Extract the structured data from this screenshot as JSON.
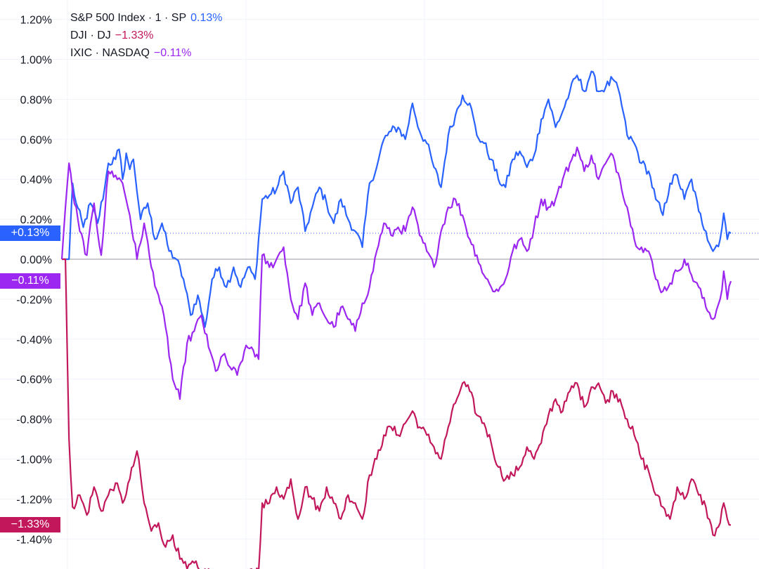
{
  "chart_data": {
    "type": "line",
    "ylabel": "",
    "xlabel": "",
    "ylim": [
      -1.6,
      1.25
    ],
    "y_ticks": [
      "1.20%",
      "1.00%",
      "0.80%",
      "0.60%",
      "0.40%",
      "0.20%",
      "0.00%",
      "-0.20%",
      "-0.40%",
      "-0.60%",
      "-0.80%",
      "-1.00%",
      "-1.20%",
      "-1.40%"
    ],
    "y_tick_values": [
      1.2,
      1.0,
      0.8,
      0.6,
      0.4,
      0.2,
      0.0,
      -0.2,
      -0.4,
      -0.6,
      -0.8,
      -1.0,
      -1.2,
      -1.4
    ],
    "grid": true,
    "legend_position": "top-left",
    "series": [
      {
        "name": "S&P 500 Index · 1 · SP",
        "legend_value": "0.13%",
        "badge": "+0.13%",
        "color": "#2962ff",
        "keypoints": [
          [
            0,
            0.0
          ],
          [
            2,
            0.0
          ],
          [
            3,
            0.38
          ],
          [
            4,
            0.28
          ],
          [
            6,
            0.16
          ],
          [
            8,
            0.28
          ],
          [
            10,
            0.18
          ],
          [
            12,
            0.36
          ],
          [
            13,
            0.48
          ],
          [
            15,
            0.5
          ],
          [
            16,
            0.55
          ],
          [
            17,
            0.4
          ],
          [
            18,
            0.53
          ],
          [
            19,
            0.45
          ],
          [
            20,
            0.5
          ],
          [
            22,
            0.2
          ],
          [
            24,
            0.28
          ],
          [
            26,
            0.1
          ],
          [
            28,
            0.18
          ],
          [
            30,
            0.04
          ],
          [
            32,
            0.0
          ],
          [
            34,
            -0.1
          ],
          [
            36,
            -0.28
          ],
          [
            38,
            -0.18
          ],
          [
            40,
            -0.34
          ],
          [
            42,
            -0.1
          ],
          [
            44,
            -0.04
          ],
          [
            46,
            -0.14
          ],
          [
            48,
            -0.04
          ],
          [
            50,
            -0.14
          ],
          [
            52,
            -0.04
          ],
          [
            54,
            -0.1
          ],
          [
            56,
            0.3
          ],
          [
            58,
            0.32
          ],
          [
            60,
            0.35
          ],
          [
            62,
            0.44
          ],
          [
            64,
            0.28
          ],
          [
            66,
            0.36
          ],
          [
            68,
            0.14
          ],
          [
            70,
            0.26
          ],
          [
            72,
            0.36
          ],
          [
            74,
            0.28
          ],
          [
            76,
            0.18
          ],
          [
            78,
            0.3
          ],
          [
            80,
            0.2
          ],
          [
            82,
            0.14
          ],
          [
            84,
            0.06
          ],
          [
            86,
            0.38
          ],
          [
            88,
            0.46
          ],
          [
            90,
            0.6
          ],
          [
            92,
            0.64
          ],
          [
            94,
            0.66
          ],
          [
            96,
            0.6
          ],
          [
            98,
            0.78
          ],
          [
            100,
            0.64
          ],
          [
            102,
            0.58
          ],
          [
            104,
            0.46
          ],
          [
            106,
            0.36
          ],
          [
            108,
            0.62
          ],
          [
            110,
            0.72
          ],
          [
            112,
            0.82
          ],
          [
            114,
            0.78
          ],
          [
            116,
            0.62
          ],
          [
            118,
            0.58
          ],
          [
            120,
            0.5
          ],
          [
            122,
            0.4
          ],
          [
            124,
            0.36
          ],
          [
            126,
            0.5
          ],
          [
            128,
            0.54
          ],
          [
            130,
            0.46
          ],
          [
            132,
            0.52
          ],
          [
            134,
            0.7
          ],
          [
            136,
            0.8
          ],
          [
            138,
            0.66
          ],
          [
            140,
            0.74
          ],
          [
            142,
            0.84
          ],
          [
            144,
            0.92
          ],
          [
            146,
            0.84
          ],
          [
            148,
            0.94
          ],
          [
            150,
            0.84
          ],
          [
            152,
            0.86
          ],
          [
            154,
            0.9
          ],
          [
            156,
            0.82
          ],
          [
            158,
            0.62
          ],
          [
            160,
            0.58
          ],
          [
            162,
            0.48
          ],
          [
            164,
            0.44
          ],
          [
            166,
            0.3
          ],
          [
            168,
            0.22
          ],
          [
            170,
            0.38
          ],
          [
            172,
            0.42
          ],
          [
            174,
            0.3
          ],
          [
            176,
            0.4
          ],
          [
            178,
            0.24
          ],
          [
            180,
            0.14
          ],
          [
            182,
            0.04
          ],
          [
            184,
            0.1
          ],
          [
            185,
            0.23
          ],
          [
            186,
            0.1
          ],
          [
            187,
            0.13
          ]
        ]
      },
      {
        "name": "DJI · DJ",
        "legend_value": "−1.33%",
        "badge": "−1.33%",
        "color": "#c2185b",
        "keypoints": [
          [
            0,
            0.0
          ],
          [
            1,
            0.0
          ],
          [
            2,
            -0.9
          ],
          [
            3,
            -1.24
          ],
          [
            5,
            -1.18
          ],
          [
            7,
            -1.28
          ],
          [
            9,
            -1.14
          ],
          [
            11,
            -1.26
          ],
          [
            13,
            -1.18
          ],
          [
            15,
            -1.12
          ],
          [
            17,
            -1.22
          ],
          [
            19,
            -1.1
          ],
          [
            21,
            -0.96
          ],
          [
            23,
            -1.22
          ],
          [
            25,
            -1.36
          ],
          [
            27,
            -1.32
          ],
          [
            29,
            -1.44
          ],
          [
            31,
            -1.38
          ],
          [
            33,
            -1.5
          ],
          [
            35,
            -1.55
          ],
          [
            37,
            -1.52
          ],
          [
            39,
            -1.58
          ],
          [
            41,
            -1.55
          ],
          [
            43,
            -1.62
          ],
          [
            45,
            -1.56
          ],
          [
            47,
            -1.6
          ],
          [
            49,
            -1.58
          ],
          [
            51,
            -1.62
          ],
          [
            53,
            -1.55
          ],
          [
            55,
            -1.56
          ],
          [
            56,
            -1.22
          ],
          [
            58,
            -1.22
          ],
          [
            60,
            -1.14
          ],
          [
            62,
            -1.2
          ],
          [
            64,
            -1.1
          ],
          [
            66,
            -1.3
          ],
          [
            68,
            -1.14
          ],
          [
            70,
            -1.2
          ],
          [
            72,
            -1.26
          ],
          [
            74,
            -1.14
          ],
          [
            76,
            -1.22
          ],
          [
            78,
            -1.3
          ],
          [
            80,
            -1.18
          ],
          [
            82,
            -1.22
          ],
          [
            84,
            -1.3
          ],
          [
            86,
            -1.08
          ],
          [
            88,
            -1.0
          ],
          [
            90,
            -0.88
          ],
          [
            92,
            -0.84
          ],
          [
            94,
            -0.88
          ],
          [
            96,
            -0.82
          ],
          [
            98,
            -0.76
          ],
          [
            100,
            -0.84
          ],
          [
            102,
            -0.88
          ],
          [
            104,
            -0.94
          ],
          [
            106,
            -1.0
          ],
          [
            108,
            -0.84
          ],
          [
            110,
            -0.72
          ],
          [
            112,
            -0.62
          ],
          [
            114,
            -0.66
          ],
          [
            116,
            -0.78
          ],
          [
            118,
            -0.82
          ],
          [
            120,
            -0.92
          ],
          [
            122,
            -1.04
          ],
          [
            124,
            -1.1
          ],
          [
            126,
            -1.08
          ],
          [
            128,
            -1.04
          ],
          [
            130,
            -0.94
          ],
          [
            132,
            -1.0
          ],
          [
            134,
            -0.92
          ],
          [
            136,
            -0.78
          ],
          [
            138,
            -0.7
          ],
          [
            140,
            -0.76
          ],
          [
            142,
            -0.66
          ],
          [
            144,
            -0.62
          ],
          [
            146,
            -0.74
          ],
          [
            148,
            -0.64
          ],
          [
            150,
            -0.62
          ],
          [
            152,
            -0.72
          ],
          [
            154,
            -0.66
          ],
          [
            156,
            -0.7
          ],
          [
            158,
            -0.8
          ],
          [
            160,
            -0.88
          ],
          [
            162,
            -1.0
          ],
          [
            164,
            -1.06
          ],
          [
            166,
            -1.18
          ],
          [
            168,
            -1.24
          ],
          [
            170,
            -1.3
          ],
          [
            172,
            -1.14
          ],
          [
            174,
            -1.2
          ],
          [
            176,
            -1.1
          ],
          [
            178,
            -1.18
          ],
          [
            180,
            -1.24
          ],
          [
            182,
            -1.38
          ],
          [
            184,
            -1.32
          ],
          [
            185,
            -1.22
          ],
          [
            186,
            -1.3
          ],
          [
            187,
            -1.33
          ]
        ]
      },
      {
        "name": "IXIC · NASDAQ",
        "legend_value": "−0.11%",
        "badge": "−0.11%",
        "color": "#9c27f0",
        "keypoints": [
          [
            0,
            0.0
          ],
          [
            1,
            0.26
          ],
          [
            2,
            0.48
          ],
          [
            3,
            0.34
          ],
          [
            5,
            0.14
          ],
          [
            7,
            0.02
          ],
          [
            9,
            0.28
          ],
          [
            11,
            0.02
          ],
          [
            13,
            0.44
          ],
          [
            15,
            0.42
          ],
          [
            17,
            0.38
          ],
          [
            19,
            0.22
          ],
          [
            21,
            0.0
          ],
          [
            23,
            0.18
          ],
          [
            25,
            -0.04
          ],
          [
            27,
            -0.18
          ],
          [
            29,
            -0.34
          ],
          [
            31,
            -0.6
          ],
          [
            33,
            -0.7
          ],
          [
            35,
            -0.42
          ],
          [
            37,
            -0.36
          ],
          [
            39,
            -0.28
          ],
          [
            41,
            -0.44
          ],
          [
            43,
            -0.56
          ],
          [
            45,
            -0.48
          ],
          [
            47,
            -0.54
          ],
          [
            49,
            -0.58
          ],
          [
            51,
            -0.46
          ],
          [
            53,
            -0.44
          ],
          [
            55,
            -0.5
          ],
          [
            56,
            0.02
          ],
          [
            58,
            -0.04
          ],
          [
            60,
            0.0
          ],
          [
            62,
            0.06
          ],
          [
            64,
            -0.2
          ],
          [
            66,
            -0.3
          ],
          [
            68,
            -0.12
          ],
          [
            70,
            -0.28
          ],
          [
            72,
            -0.22
          ],
          [
            74,
            -0.3
          ],
          [
            76,
            -0.34
          ],
          [
            78,
            -0.24
          ],
          [
            80,
            -0.3
          ],
          [
            82,
            -0.36
          ],
          [
            84,
            -0.22
          ],
          [
            86,
            -0.14
          ],
          [
            88,
            0.04
          ],
          [
            90,
            0.18
          ],
          [
            92,
            0.12
          ],
          [
            94,
            0.16
          ],
          [
            96,
            0.14
          ],
          [
            98,
            0.26
          ],
          [
            100,
            0.12
          ],
          [
            102,
            0.04
          ],
          [
            104,
            -0.04
          ],
          [
            106,
            0.14
          ],
          [
            108,
            0.26
          ],
          [
            110,
            0.3
          ],
          [
            112,
            0.22
          ],
          [
            114,
            0.1
          ],
          [
            116,
            0.02
          ],
          [
            118,
            -0.08
          ],
          [
            120,
            -0.14
          ],
          [
            122,
            -0.16
          ],
          [
            124,
            -0.1
          ],
          [
            126,
            0.04
          ],
          [
            128,
            0.1
          ],
          [
            130,
            0.04
          ],
          [
            132,
            0.16
          ],
          [
            134,
            0.3
          ],
          [
            136,
            0.26
          ],
          [
            138,
            0.3
          ],
          [
            140,
            0.4
          ],
          [
            142,
            0.48
          ],
          [
            144,
            0.56
          ],
          [
            146,
            0.44
          ],
          [
            148,
            0.52
          ],
          [
            150,
            0.4
          ],
          [
            152,
            0.48
          ],
          [
            154,
            0.52
          ],
          [
            156,
            0.4
          ],
          [
            158,
            0.26
          ],
          [
            160,
            0.1
          ],
          [
            162,
            0.06
          ],
          [
            164,
            0.04
          ],
          [
            166,
            -0.1
          ],
          [
            168,
            -0.16
          ],
          [
            170,
            -0.12
          ],
          [
            172,
            -0.06
          ],
          [
            174,
            0.0
          ],
          [
            176,
            -0.08
          ],
          [
            178,
            -0.14
          ],
          [
            180,
            -0.24
          ],
          [
            182,
            -0.3
          ],
          [
            184,
            -0.2
          ],
          [
            185,
            -0.06
          ],
          [
            186,
            -0.2
          ],
          [
            187,
            -0.11
          ]
        ]
      }
    ]
  }
}
